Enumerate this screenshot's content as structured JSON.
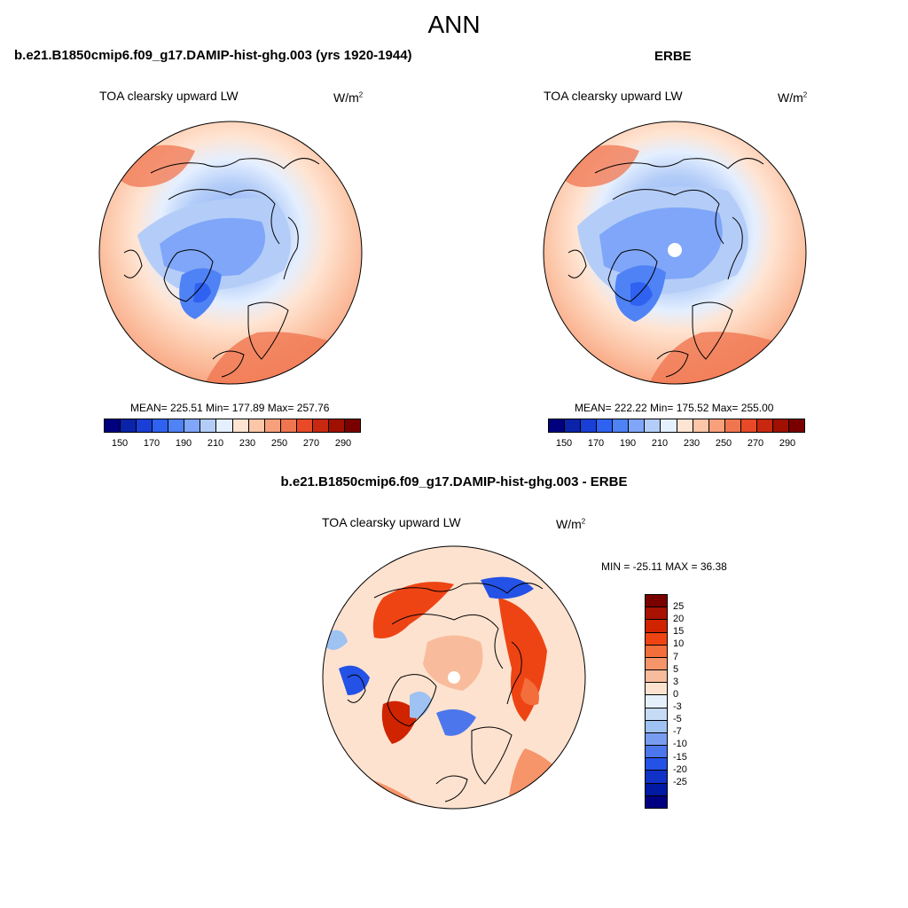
{
  "title": "ANN",
  "colors": {
    "abs_scale": [
      "#00007f",
      "#0a23a8",
      "#1a3fd6",
      "#2f62f0",
      "#4f82f5",
      "#7fa6f8",
      "#b4cdf8",
      "#e4efff",
      "#ffe4d2",
      "#fcc6a8",
      "#f8a07c",
      "#f07650",
      "#e84a28",
      "#c82810",
      "#a01000",
      "#7a0000"
    ],
    "diff_scale": [
      "#7a0000",
      "#a81200",
      "#d02400",
      "#ee4414",
      "#f46e3c",
      "#f6946a",
      "#f8bc9c",
      "#fde2cf",
      "#e6f0fc",
      "#c6dbf6",
      "#9ec2f2",
      "#789df0",
      "#4c76ec",
      "#2452e6",
      "#1032c6",
      "#001aa4",
      "#000080"
    ]
  },
  "panels": [
    {
      "title": "b.e21.B1850cmip6.f09_g17.DAMIP-hist-ghg.003 (yrs 1920-1944)",
      "field": "TOA clearsky upward LW",
      "units_base": "W/m",
      "units_exp": "2",
      "stats": "MEAN= 225.51  Min= 177.89  Max= 257.76",
      "colorbar_ticks": [
        "150",
        "170",
        "190",
        "210",
        "230",
        "250",
        "270",
        "290"
      ]
    },
    {
      "title": "ERBE",
      "field": "TOA clearsky upward LW",
      "units_base": "W/m",
      "units_exp": "2",
      "stats": "MEAN= 222.22  Min= 175.52  Max= 255.00",
      "colorbar_ticks": [
        "150",
        "170",
        "190",
        "210",
        "230",
        "250",
        "270",
        "290"
      ]
    },
    {
      "title": "b.e21.B1850cmip6.f09_g17.DAMIP-hist-ghg.003 - ERBE",
      "field": "TOA clearsky upward LW",
      "units_base": "W/m",
      "units_exp": "2",
      "stats": "MIN = -25.11 MAX =  36.38",
      "colorbar_ticks": [
        "25",
        "20",
        "15",
        "10",
        "7",
        "5",
        "3",
        "0",
        "-3",
        "-5",
        "-7",
        "-10",
        "-15",
        "-20",
        "-25"
      ]
    }
  ]
}
